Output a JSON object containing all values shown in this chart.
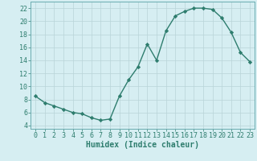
{
  "x": [
    0,
    1,
    2,
    3,
    4,
    5,
    6,
    7,
    8,
    9,
    10,
    11,
    12,
    13,
    14,
    15,
    16,
    17,
    18,
    19,
    20,
    21,
    22,
    23
  ],
  "y": [
    8.5,
    7.5,
    7.0,
    6.5,
    6.0,
    5.8,
    5.2,
    4.8,
    5.0,
    8.5,
    11.0,
    13.0,
    16.5,
    14.0,
    18.5,
    20.8,
    21.5,
    22.0,
    22.0,
    21.8,
    20.5,
    18.3,
    15.2,
    13.8
  ],
  "line_color": "#2e7d6e",
  "marker": "D",
  "markersize": 2.2,
  "linewidth": 1.0,
  "bg_color": "#d6eef2",
  "grid_color": "#b8d4d8",
  "xlabel": "Humidex (Indice chaleur)",
  "xlim": [
    -0.5,
    23.5
  ],
  "ylim": [
    3.5,
    23.0
  ],
  "yticks": [
    4,
    6,
    8,
    10,
    12,
    14,
    16,
    18,
    20,
    22
  ],
  "xticks": [
    0,
    1,
    2,
    3,
    4,
    5,
    6,
    7,
    8,
    9,
    10,
    11,
    12,
    13,
    14,
    15,
    16,
    17,
    18,
    19,
    20,
    21,
    22,
    23
  ],
  "xlabel_fontsize": 7.0,
  "tick_fontsize": 6.0,
  "tick_color": "#2e7d6e",
  "spine_color": "#6aacb0"
}
